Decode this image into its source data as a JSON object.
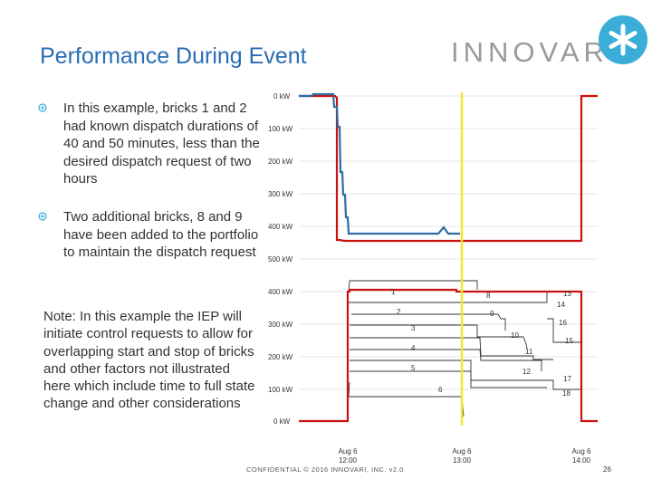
{
  "slide": {
    "title": "Performance During Event",
    "logo_text": "INNOVARI",
    "colors": {
      "title": "#2a6db5",
      "accent_teal": "#3aaed8",
      "series_blue": "#2e6da4",
      "series_red": "#cc1111",
      "marker_yellow": "#f2e82a"
    },
    "bullets": [
      "In this example, bricks 1 and 2 had known dispatch durations of 40 and 50 minutes, less than the desired dispatch request of two hours",
      "Two additional bricks, 8 and 9 have been added to the portfolio to maintain the dispatch request"
    ],
    "note": "Note:  In this example the IEP will initiate control requests to allow for overlapping start and stop of bricks and other factors not illustrated here which include time to full state change and other considerations",
    "footer": "CONFIDENTIAL © 2016 INNOVARI, INC. v2.0",
    "page_number": "26",
    "logo_icon": "asterisk-logo-icon"
  },
  "chart_data": [
    {
      "type": "line",
      "title": "",
      "y_tick_labels": [
        "0 kW",
        "100 kW",
        "200 kW",
        "300 kW",
        "400 kW",
        "500 kW"
      ],
      "ylim": [
        0,
        500
      ],
      "y_inverted": true,
      "series": [
        {
          "color": "#2e6da4",
          "x_min": [
            0,
            4,
            8,
            12,
            15,
            22,
            25,
            150,
            155,
            157,
            160,
            165,
            210
          ],
          "y": [
            0,
            0,
            0,
            0,
            100,
            380,
            420,
            420,
            420,
            400,
            420,
            420,
            420
          ]
        },
        {
          "color": "#cc1111",
          "x_min": [
            0,
            4,
            5,
            210,
            210,
            250
          ],
          "y": [
            0,
            0,
            475,
            475,
            0,
            0
          ]
        }
      ]
    },
    {
      "type": "area",
      "title": "",
      "y_tick_labels": [
        "0 kW",
        "100 kW",
        "200 kW",
        "300 kW",
        "400 kW"
      ],
      "ylim": [
        0,
        400
      ],
      "x_tick_labels": [
        "Aug 6\n12:00",
        "Aug 6\n13:00",
        "Aug 6\n14:00"
      ],
      "brick_labels": [
        "1",
        "2",
        "3",
        "4",
        "5",
        "6",
        "8",
        "9",
        "10",
        "11",
        "12",
        "13",
        "14",
        "15",
        "16",
        "17",
        "18"
      ],
      "total_series": {
        "color": "#cc1111",
        "x_min": [
          -25,
          0,
          0,
          120,
          120,
          130
        ],
        "y": [
          0,
          0,
          400,
          400,
          0,
          0
        ]
      },
      "marker": {
        "color": "#f2e82a",
        "x_min": 60
      }
    }
  ]
}
